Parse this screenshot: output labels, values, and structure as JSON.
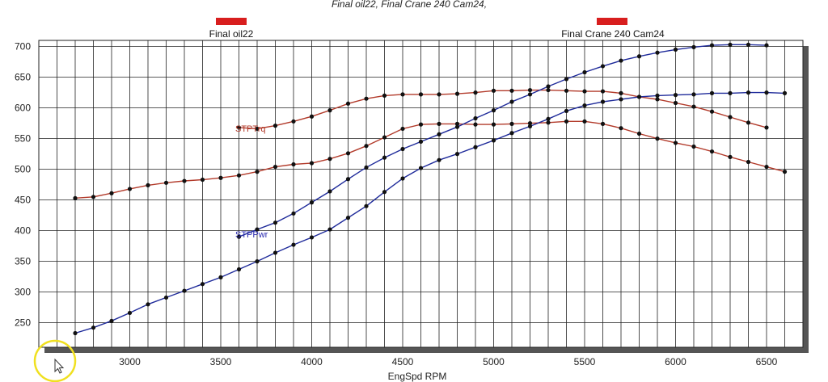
{
  "chart_data": {
    "type": "line",
    "title": "Final oil22, Final Crane 240 Cam24,",
    "xlabel": "EngSpd  RPM",
    "ylabel": "",
    "xlim": [
      2600,
      6700
    ],
    "ylim": [
      210,
      710
    ],
    "x_ticks": [
      3000,
      3500,
      4000,
      4500,
      5000,
      5500,
      6000,
      6500
    ],
    "y_ticks": [
      250,
      300,
      350,
      400,
      450,
      500,
      550,
      600,
      650,
      700
    ],
    "grid": true,
    "legend": [
      {
        "label": "Final oil22",
        "color": "#d81e1e"
      },
      {
        "label": "Final Crane 240 Cam24",
        "color": "#d81e1e"
      }
    ],
    "annotations": [
      {
        "text": "STPTrq",
        "x": 3600,
        "y": 568,
        "color": "#b23a2a"
      },
      {
        "text": "STPPwr",
        "x": 3600,
        "y": 390,
        "color": "#2b2bb0"
      }
    ],
    "colors": {
      "torque": "#b23a2a",
      "power": "#1e2a9a",
      "marker": "#111111"
    },
    "series": [
      {
        "kind": "torque",
        "x": [
          2700,
          2800,
          2900,
          3000,
          3100,
          3200,
          3300,
          3400,
          3500,
          3600,
          3700,
          3800,
          3900,
          4000,
          4100,
          4200,
          4300,
          4400,
          4500,
          4600,
          4700,
          4800,
          4900,
          5000,
          5100,
          5200,
          5300,
          5400,
          5500,
          5600,
          5700,
          5800,
          5900,
          6000,
          6100,
          6200,
          6300,
          6400,
          6500,
          6600
        ],
        "values": [
          453,
          455,
          461,
          468,
          474,
          478,
          481,
          483,
          486,
          490,
          496,
          504,
          508,
          510,
          517,
          526,
          538,
          552,
          566,
          573,
          574,
          574,
          573,
          573,
          574,
          575,
          576,
          578,
          578,
          574,
          567,
          558,
          550,
          543,
          537,
          529,
          520,
          512,
          504,
          496
        ]
      },
      {
        "kind": "torque",
        "x": [
          3600,
          3700,
          3800,
          3900,
          4000,
          4100,
          4200,
          4300,
          4400,
          4500,
          4600,
          4700,
          4800,
          4900,
          5000,
          5100,
          5200,
          5300,
          5400,
          5500,
          5600,
          5700,
          5800,
          5900,
          6000,
          6100,
          6200,
          6300,
          6400,
          6500
        ],
        "values": [
          568,
          566,
          571,
          578,
          586,
          596,
          607,
          615,
          620,
          622,
          622,
          622,
          623,
          625,
          628,
          628,
          629,
          629,
          628,
          627,
          627,
          624,
          618,
          614,
          608,
          602,
          594,
          585,
          576,
          568
        ]
      },
      {
        "kind": "power",
        "x": [
          2700,
          2800,
          2900,
          3000,
          3100,
          3200,
          3300,
          3400,
          3500,
          3600,
          3700,
          3800,
          3900,
          4000,
          4100,
          4200,
          4300,
          4400,
          4500,
          4600,
          4700,
          4800,
          4900,
          5000,
          5100,
          5200,
          5300,
          5400,
          5500,
          5600,
          5700,
          5800,
          5900,
          6000,
          6100,
          6200,
          6300,
          6400,
          6500,
          6600
        ],
        "values": [
          233,
          242,
          253,
          266,
          280,
          291,
          302,
          313,
          324,
          337,
          350,
          364,
          377,
          389,
          402,
          421,
          440,
          463,
          485,
          502,
          515,
          525,
          536,
          547,
          559,
          570,
          582,
          595,
          604,
          610,
          614,
          618,
          620,
          621,
          622,
          624,
          624,
          625,
          625,
          624
        ]
      },
      {
        "kind": "power",
        "x": [
          3600,
          3700,
          3800,
          3900,
          4000,
          4100,
          4200,
          4300,
          4400,
          4500,
          4600,
          4700,
          4800,
          4900,
          5000,
          5100,
          5200,
          5300,
          5400,
          5500,
          5600,
          5700,
          5800,
          5900,
          6000,
          6100,
          6200,
          6300,
          6400,
          6500
        ],
        "values": [
          390,
          402,
          413,
          428,
          446,
          464,
          484,
          503,
          519,
          533,
          545,
          557,
          569,
          583,
          596,
          610,
          622,
          635,
          647,
          658,
          668,
          677,
          684,
          690,
          695,
          699,
          702,
          703,
          703,
          702
        ]
      }
    ]
  }
}
